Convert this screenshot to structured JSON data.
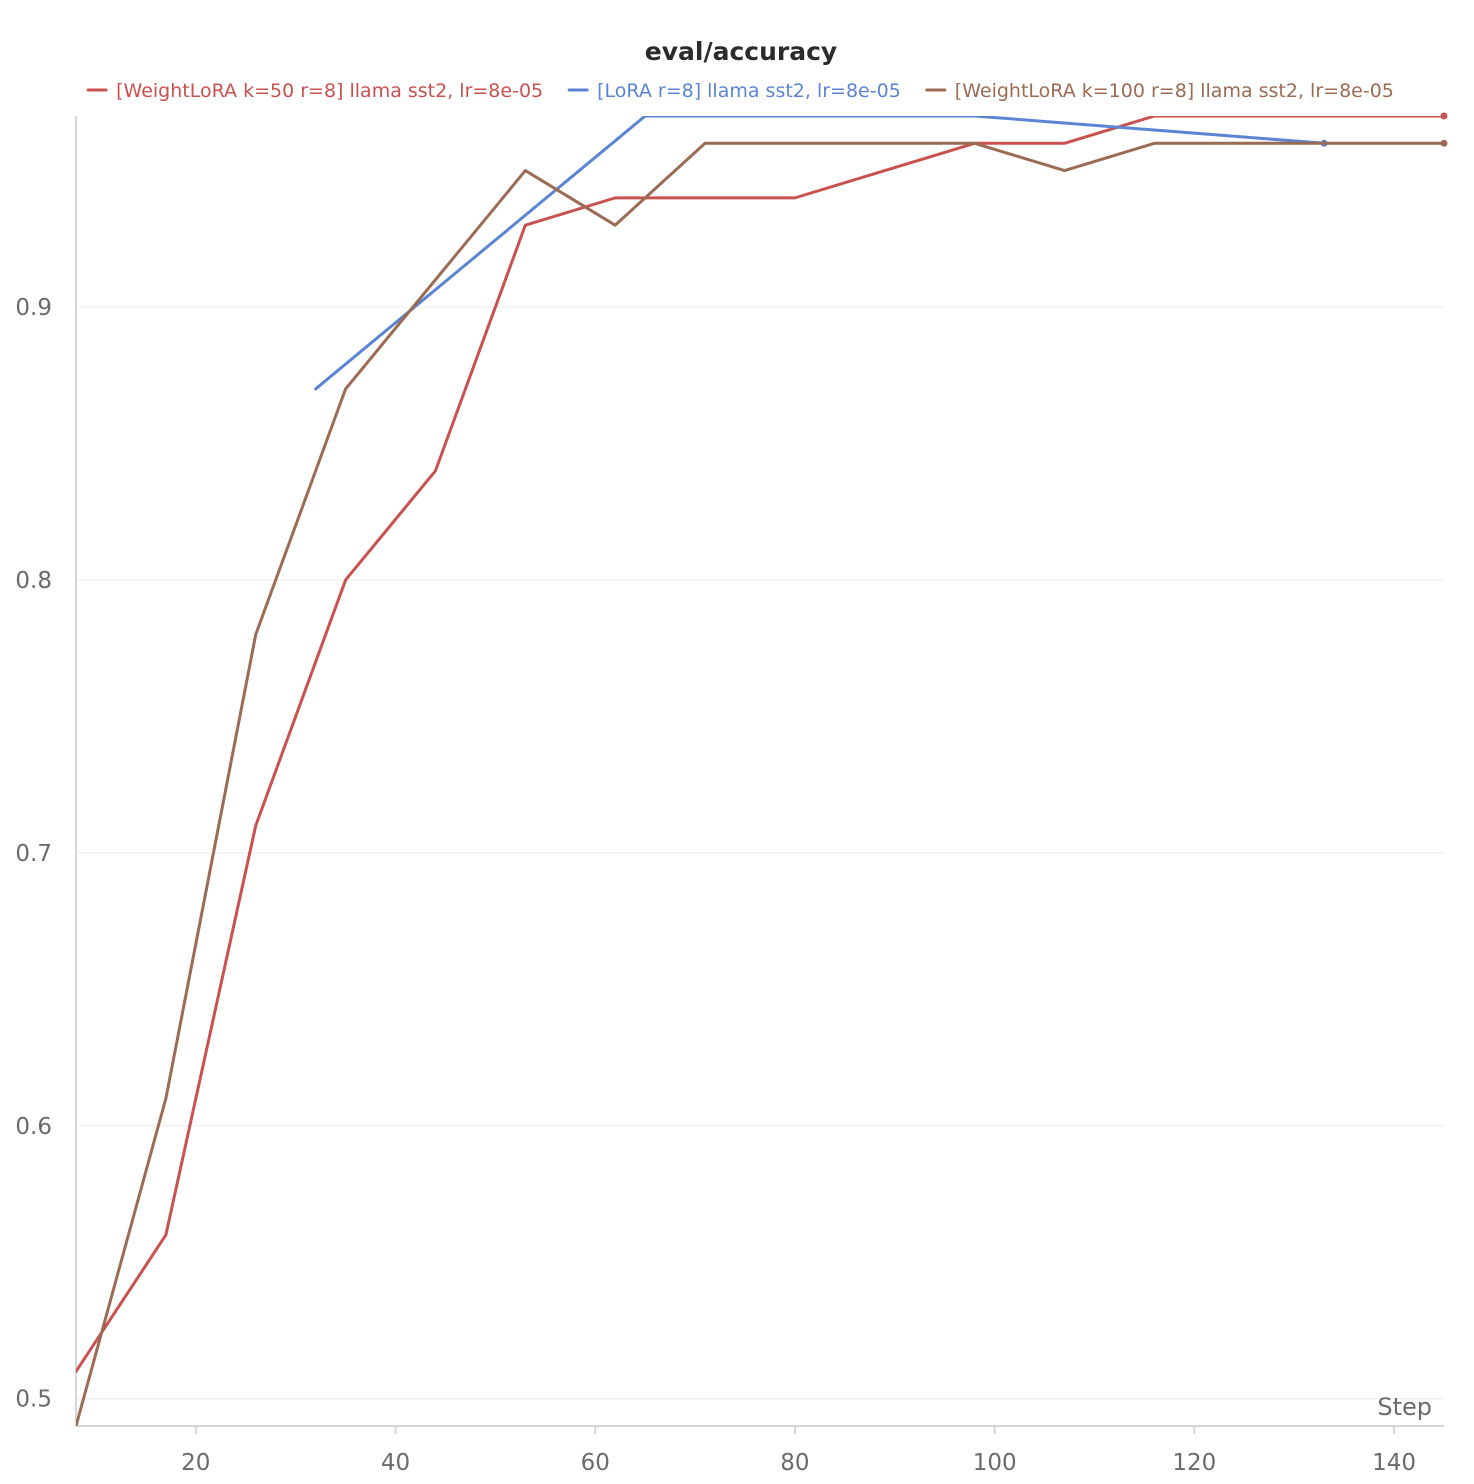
{
  "chart_data": {
    "type": "line",
    "title": "eval/accuracy",
    "xlabel": "Step",
    "ylabel": "",
    "xlim": [
      8,
      145
    ],
    "ylim": [
      0.49,
      0.97
    ],
    "x_ticks": [
      20,
      40,
      60,
      80,
      100,
      120,
      140
    ],
    "y_ticks": [
      0.5,
      0.6,
      0.7,
      0.8,
      0.9
    ],
    "grid": true,
    "legend_position": "top",
    "series": [
      {
        "name": "[WeightLoRA k=50 r=8] llama sst2, lr=8e-05",
        "color": "#c9514f",
        "x": [
          8,
          17,
          26,
          35,
          44,
          53,
          62,
          71,
          80,
          89,
          98,
          107,
          116,
          125,
          134,
          145
        ],
        "y": [
          0.51,
          0.56,
          0.71,
          0.8,
          0.84,
          0.93,
          0.94,
          0.94,
          0.94,
          0.95,
          0.96,
          0.96,
          0.97,
          0.97,
          0.97,
          0.97
        ],
        "end_marker": true
      },
      {
        "name": "[LoRA r=8] llama sst2, lr=8e-05",
        "color": "#5b84d4",
        "x": [
          32,
          65,
          98,
          133
        ],
        "y": [
          0.87,
          0.97,
          0.97,
          0.96
        ],
        "end_marker": true
      },
      {
        "name": "[WeightLoRA k=100 r=8] llama sst2, lr=8e-05",
        "color": "#9c6b54",
        "x": [
          8,
          17,
          26,
          35,
          44,
          53,
          62,
          71,
          80,
          89,
          98,
          107,
          116,
          125,
          134,
          145
        ],
        "y": [
          0.49,
          0.61,
          0.78,
          0.87,
          0.91,
          0.95,
          0.93,
          0.96,
          0.96,
          0.96,
          0.96,
          0.95,
          0.96,
          0.96,
          0.96,
          0.96
        ],
        "end_marker": true
      }
    ]
  }
}
